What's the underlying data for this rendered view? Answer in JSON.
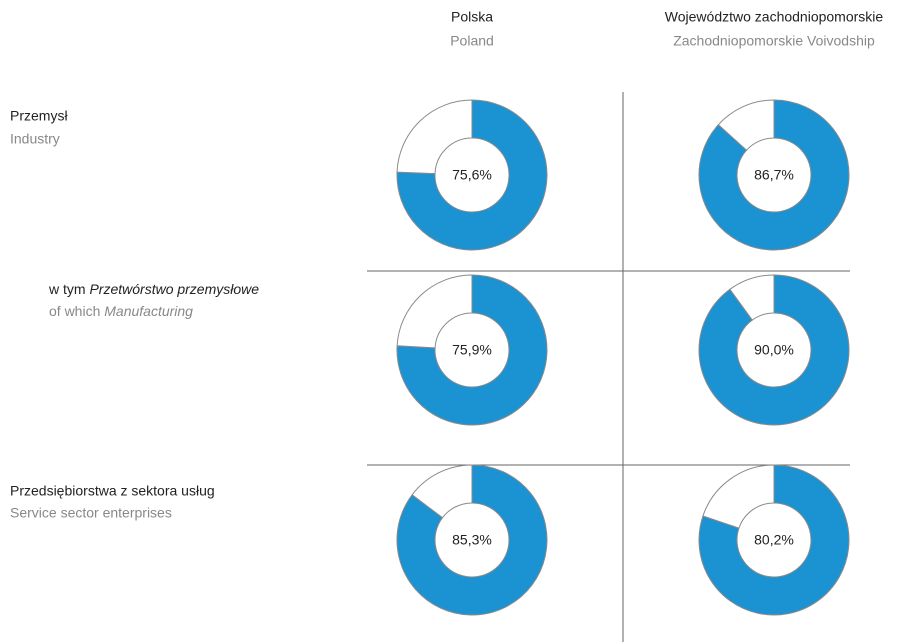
{
  "columns": [
    {
      "pl": "Polska",
      "en": "Poland"
    },
    {
      "pl": "Województwo zachodniopomorskie",
      "en": "Zachodniopomorskie Voivodship"
    }
  ],
  "rows": [
    {
      "pl": "Przemysł",
      "en": "Industry"
    },
    {
      "pl": "w tym",
      "pl_italic": "Przetwórstwo przemysłowe",
      "en": "of which",
      "en_italic": "Manufacturing"
    },
    {
      "pl": "Przedsiębiorstwa z sektora usług",
      "en": "Service sector enterprises"
    }
  ],
  "chart_data": [
    {
      "type": "pie",
      "donut": true,
      "values": [
        75.6,
        24.4
      ],
      "value_labels": [
        "75,6%",
        null
      ],
      "colors": [
        "#1b92d1",
        "#ffffff"
      ]
    },
    {
      "type": "pie",
      "donut": true,
      "values": [
        86.7,
        13.3
      ],
      "value_labels": [
        "86,7%",
        null
      ],
      "colors": [
        "#1b92d1",
        "#ffffff"
      ]
    },
    {
      "type": "pie",
      "donut": true,
      "values": [
        75.9,
        24.1
      ],
      "value_labels": [
        "75,9%",
        null
      ],
      "colors": [
        "#1b92d1",
        "#ffffff"
      ]
    },
    {
      "type": "pie",
      "donut": true,
      "values": [
        90.0,
        10.0
      ],
      "value_labels": [
        "90,0%",
        null
      ],
      "colors": [
        "#1b92d1",
        "#ffffff"
      ]
    },
    {
      "type": "pie",
      "donut": true,
      "values": [
        85.3,
        14.7
      ],
      "value_labels": [
        "85,3%",
        null
      ],
      "colors": [
        "#1b92d1",
        "#ffffff"
      ]
    },
    {
      "type": "pie",
      "donut": true,
      "values": [
        80.2,
        19.8
      ],
      "value_labels": [
        "80,2%",
        null
      ],
      "colors": [
        "#1b92d1",
        "#ffffff"
      ]
    }
  ]
}
